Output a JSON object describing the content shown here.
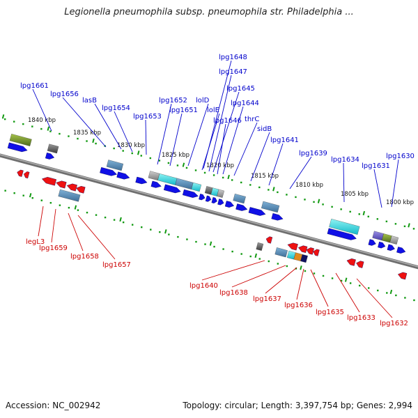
{
  "title": "Legionella pneumophila subsp. pneumophila str. Philadelphia ...",
  "footer": {
    "accession": "Accession: NC_002942",
    "summary": "Topology: circular; Length: 3,397,754 bp; Genes: 2,994"
  },
  "colors": {
    "forward_label": "#0000cc",
    "reverse_label": "#cc0000",
    "forward_arrow": "#1010e6",
    "reverse_arrow": "#ee1111",
    "backbone": "#808080",
    "scale_dots": "#119911"
  },
  "scale_ticks": [
    {
      "label": "1840 kbp"
    },
    {
      "label": "1835 kbp"
    },
    {
      "label": "1830 kbp"
    },
    {
      "label": "1825 kbp"
    },
    {
      "label": "1820 kbp"
    },
    {
      "label": "1815 kbp"
    },
    {
      "label": "1810 kbp"
    },
    {
      "label": "1805 kbp"
    },
    {
      "label": "1800 kbp"
    }
  ],
  "forward_genes": [
    "lpg1661",
    "lpg1656",
    "lasB",
    "lpg1654",
    "lpg1653",
    "lpg1652",
    "lpg1651",
    "lolD",
    "lolE",
    "lpg1648",
    "lpg1647",
    "lpg1646",
    "lpg1645",
    "lpg1644",
    "thrC",
    "sidB",
    "lpg1641",
    "lpg1639",
    "lpg1634",
    "lpg1631",
    "lpg1630"
  ],
  "reverse_genes": [
    "legL3",
    "lpg1659",
    "lpg1658",
    "lpg1657",
    "lpg1640",
    "lpg1638",
    "lpg1637",
    "lpg1636",
    "lpg1635",
    "lpg1633",
    "lpg1632"
  ]
}
